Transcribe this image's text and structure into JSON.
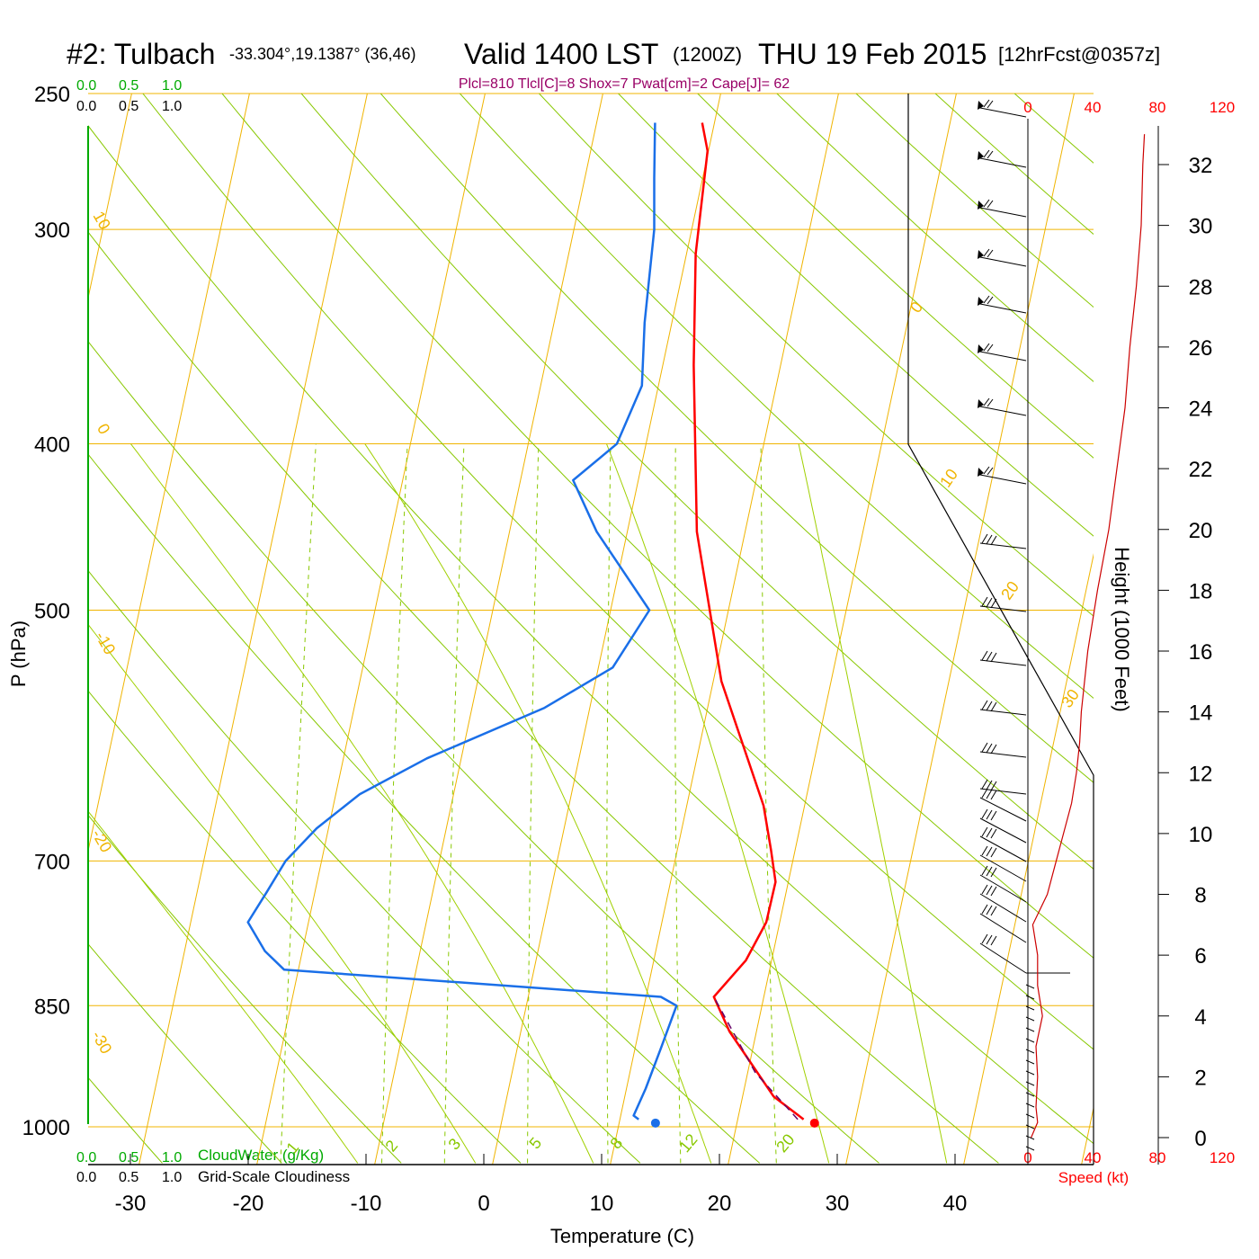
{
  "header": {
    "station": "#2: Tulbach",
    "coords": "-33.304°,19.1387° (36,46)",
    "valid": "Valid 1400 LST",
    "zulu": "(1200Z)",
    "date": "THU 19 Feb 2015",
    "forecast": "[12hrFcst@0357z]",
    "indices": "Plcl=810 Tlcl[C]=8 Shox=7 Pwat[cm]=2 Cape[J]= 62"
  },
  "cloud_scale": {
    "green_ticks": [
      "0.0",
      "0.5",
      "1.0"
    ],
    "black_ticks": [
      "0.0",
      "0.5",
      "1.0"
    ],
    "cloudwater_label": "CloudWater (g/Kg)",
    "cloudiness_label": "Grid-Scale Cloudiness"
  },
  "colors": {
    "isotherm": "#f0b400",
    "dry_adiabat": "#88c800",
    "moist_adiabat": "#a0d000",
    "mixing_ratio": "#88c800",
    "temperature": "#ff0000",
    "dewpoint": "#1a6fe8",
    "parcel": "#660066",
    "indices": "#990066",
    "speed": "#ff0000",
    "cloudwater": "#00aa00"
  },
  "chart_data": {
    "type": "line",
    "title": "",
    "xlabel": "Temperature (C)",
    "ylabel": "P (hPa)",
    "x_ticks": [
      -30,
      -20,
      -10,
      0,
      10,
      20,
      30,
      40
    ],
    "y_ticks": [
      250,
      300,
      400,
      500,
      700,
      850,
      1000
    ],
    "ylim": [
      1050,
      250
    ],
    "isotherm_labels": [
      "10",
      "0",
      "-10",
      "-20",
      "-30",
      "0",
      "10",
      "20",
      "30"
    ],
    "mixing_ratio_labels": [
      "1",
      "2",
      "3",
      "5",
      "8",
      "12",
      "20"
    ],
    "series": [
      {
        "name": "Temperature",
        "points": [
          [
            27,
            990
          ],
          [
            24,
            960
          ],
          [
            19,
            880
          ],
          [
            17,
            840
          ],
          [
            19,
            800
          ],
          [
            20,
            760
          ],
          [
            20,
            720
          ],
          [
            19,
            690
          ],
          [
            17.5,
            650
          ],
          [
            11.5,
            550
          ],
          [
            6.5,
            450
          ],
          [
            3,
            360
          ],
          [
            1,
            310
          ],
          [
            0,
            270
          ],
          [
            -1,
            260
          ]
        ]
      },
      {
        "name": "Dewpoint",
        "points": [
          [
            13,
            990
          ],
          [
            12.5,
            985
          ],
          [
            13,
            950
          ],
          [
            13.5,
            900
          ],
          [
            14,
            850
          ],
          [
            12.5,
            840
          ],
          [
            -20,
            810
          ],
          [
            -22,
            790
          ],
          [
            -24,
            760
          ],
          [
            -23,
            730
          ],
          [
            -22,
            700
          ],
          [
            -20,
            670
          ],
          [
            -17,
            640
          ],
          [
            -12,
            610
          ],
          [
            -3,
            570
          ],
          [
            2,
            540
          ],
          [
            4,
            500
          ],
          [
            -2,
            450
          ],
          [
            -5,
            420
          ],
          [
            -2,
            400
          ],
          [
            -1,
            370
          ],
          [
            -2,
            340
          ],
          [
            -3,
            300
          ],
          [
            -4,
            280
          ],
          [
            -5,
            260
          ]
        ]
      },
      {
        "name": "Parcel",
        "points": [
          [
            26.5,
            990
          ],
          [
            22,
            930
          ],
          [
            17,
            840
          ]
        ]
      }
    ],
    "surface_points": [
      {
        "name": "dewpoint",
        "t": 14.5,
        "p": 995
      },
      {
        "name": "temperature",
        "t": 28,
        "p": 995
      }
    ],
    "height_axis": {
      "label": "Height (1000 Feet)",
      "ticks": [
        "0",
        "2",
        "4",
        "6",
        "8",
        "10",
        "12",
        "14",
        "16",
        "18",
        "20",
        "22",
        "24",
        "26",
        "28",
        "30",
        "32"
      ]
    },
    "wind_speed_axis": {
      "label": "Speed (kt)",
      "ticks": [
        "0",
        "40",
        "80",
        "120"
      ],
      "profile": [
        [
          2,
          0
        ],
        [
          6,
          0.5
        ],
        [
          5,
          1
        ],
        [
          6,
          2
        ],
        [
          5,
          3
        ],
        [
          9,
          4
        ],
        [
          6,
          5
        ],
        [
          6,
          6
        ],
        [
          3,
          7
        ],
        [
          12,
          8
        ],
        [
          17,
          9
        ],
        [
          22,
          10
        ],
        [
          27,
          11
        ],
        [
          30,
          12
        ],
        [
          32,
          13
        ],
        [
          33,
          14
        ],
        [
          37,
          16
        ],
        [
          43,
          18
        ],
        [
          50,
          20
        ],
        [
          55,
          22
        ],
        [
          60,
          24
        ],
        [
          63,
          26
        ],
        [
          67,
          28
        ],
        [
          70,
          30
        ],
        [
          71,
          32
        ],
        [
          72,
          33
        ]
      ]
    }
  }
}
